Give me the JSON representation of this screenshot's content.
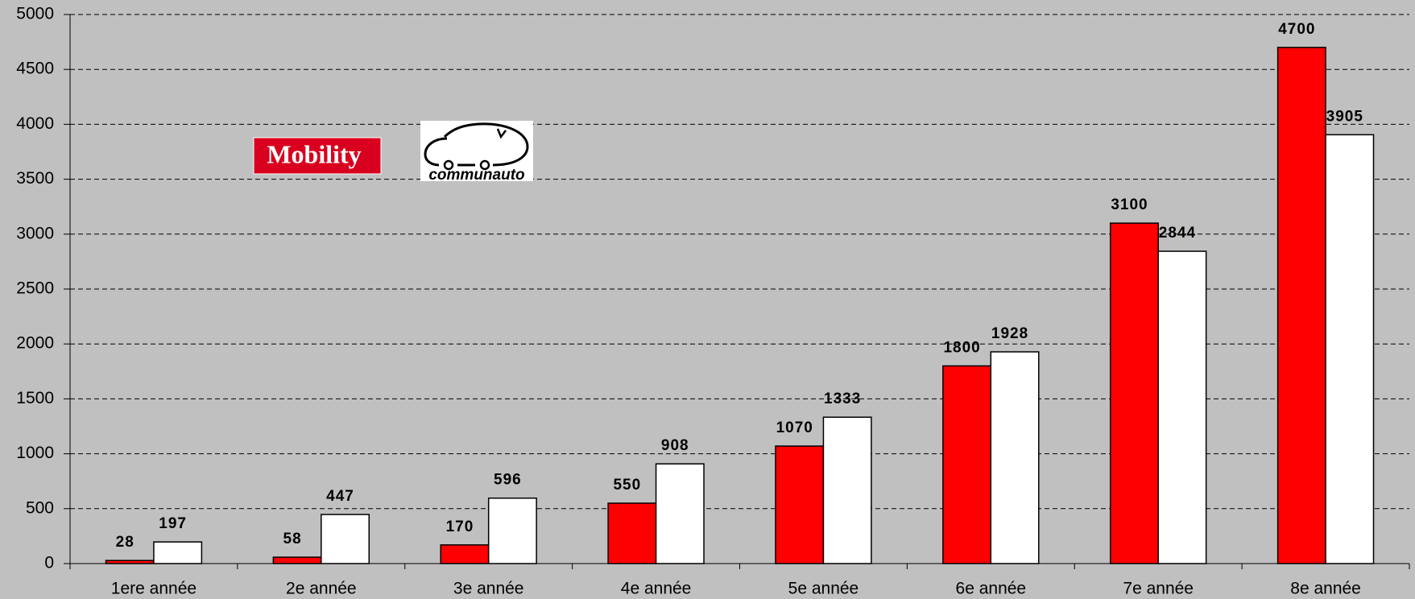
{
  "chart_data": {
    "type": "bar",
    "categories": [
      "1ere année",
      "2e année",
      "3e année",
      "4e année",
      "5e année",
      "6e année",
      "7e année",
      "8e année"
    ],
    "series": [
      {
        "name": "Mobility",
        "color": "#ff0000",
        "values": [
          28,
          58,
          170,
          550,
          1070,
          1800,
          3100,
          4700
        ]
      },
      {
        "name": "communauto",
        "color": "#ffffff",
        "values": [
          197,
          447,
          596,
          908,
          1333,
          1928,
          2844,
          3905
        ]
      }
    ],
    "ylim": [
      0,
      5000
    ],
    "yticks": [
      0,
      500,
      1000,
      1500,
      2000,
      2500,
      3000,
      3500,
      4000,
      4500,
      5000
    ],
    "grid": true
  }
}
